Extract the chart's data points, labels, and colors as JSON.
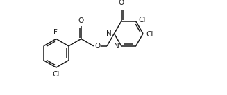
{
  "figsize": [
    3.27,
    1.38
  ],
  "dpi": 100,
  "bg": "#ffffff",
  "lc": "#1a1a1a",
  "lw": 1.1,
  "fs": 7.5,
  "xlim": [
    -0.3,
    10.8
  ],
  "ylim": [
    0.0,
    4.6
  ]
}
